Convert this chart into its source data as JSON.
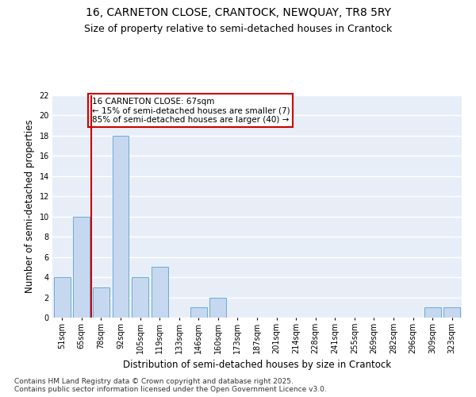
{
  "title1": "16, CARNETON CLOSE, CRANTOCK, NEWQUAY, TR8 5RY",
  "title2": "Size of property relative to semi-detached houses in Crantock",
  "xlabel": "Distribution of semi-detached houses by size in Crantock",
  "ylabel": "Number of semi-detached properties",
  "categories": [
    "51sqm",
    "65sqm",
    "78sqm",
    "92sqm",
    "105sqm",
    "119sqm",
    "133sqm",
    "146sqm",
    "160sqm",
    "173sqm",
    "187sqm",
    "201sqm",
    "214sqm",
    "228sqm",
    "241sqm",
    "255sqm",
    "269sqm",
    "282sqm",
    "296sqm",
    "309sqm",
    "323sqm"
  ],
  "values": [
    4,
    10,
    3,
    18,
    4,
    5,
    0,
    1,
    2,
    0,
    0,
    0,
    0,
    0,
    0,
    0,
    0,
    0,
    0,
    1,
    1
  ],
  "bar_color": "#c5d8f0",
  "bar_edge_color": "#6aaad4",
  "annotation_text": "16 CARNETON CLOSE: 67sqm\n← 15% of semi-detached houses are smaller (7)\n85% of semi-detached houses are larger (40) →",
  "annotation_box_color": "#ffffff",
  "annotation_box_edge_color": "#cc0000",
  "vline_color": "#cc0000",
  "ylim": [
    0,
    22
  ],
  "yticks": [
    0,
    2,
    4,
    6,
    8,
    10,
    12,
    14,
    16,
    18,
    20,
    22
  ],
  "background_color": "#e8eef8",
  "grid_color": "#ffffff",
  "footer": "Contains HM Land Registry data © Crown copyright and database right 2025.\nContains public sector information licensed under the Open Government Licence v3.0.",
  "title1_fontsize": 10,
  "title2_fontsize": 9,
  "xlabel_fontsize": 8.5,
  "ylabel_fontsize": 8.5,
  "tick_fontsize": 7,
  "footer_fontsize": 6.5
}
